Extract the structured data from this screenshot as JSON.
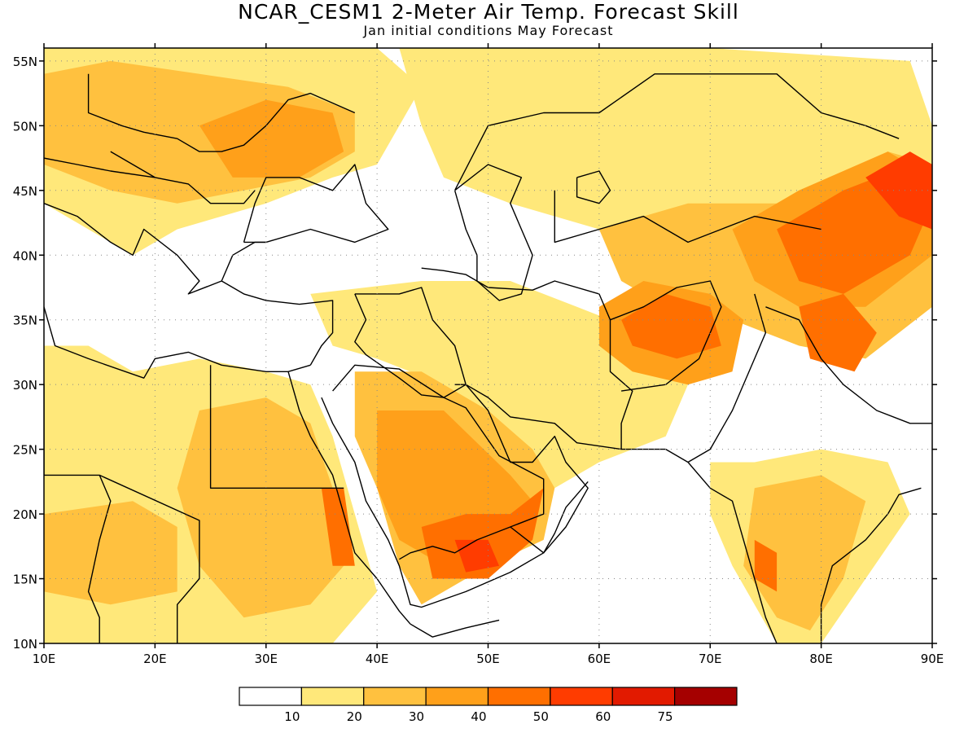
{
  "title": "NCAR_CESM1 2-Meter Air Temp. Forecast Skill",
  "subtitle": "Jan initial conditions  May Forecast",
  "map": {
    "lon_range": [
      10,
      90
    ],
    "lat_range": [
      10,
      56
    ],
    "lat_ticks": [
      {
        "value": 55,
        "label": "55N"
      },
      {
        "value": 50,
        "label": "50N"
      },
      {
        "value": 45,
        "label": "45N"
      },
      {
        "value": 40,
        "label": "40N"
      },
      {
        "value": 35,
        "label": "35N"
      },
      {
        "value": 30,
        "label": "30N"
      },
      {
        "value": 25,
        "label": "25N"
      },
      {
        "value": 20,
        "label": "20N"
      },
      {
        "value": 15,
        "label": "15N"
      },
      {
        "value": 10,
        "label": "10N"
      }
    ],
    "lon_ticks": [
      {
        "value": 10,
        "label": "10E"
      },
      {
        "value": 20,
        "label": "20E"
      },
      {
        "value": 30,
        "label": "30E"
      },
      {
        "value": 40,
        "label": "40E"
      },
      {
        "value": 50,
        "label": "50E"
      },
      {
        "value": 60,
        "label": "60E"
      },
      {
        "value": 70,
        "label": "70E"
      },
      {
        "value": 80,
        "label": "80E"
      },
      {
        "value": 90,
        "label": "90E"
      }
    ],
    "skill_colors": [
      "#ffffff",
      "#ffe87a",
      "#ffc13f",
      "#ffa01a",
      "#ff6f00",
      "#ff3c00",
      "#e21a00",
      "#a50000"
    ]
  },
  "legend": {
    "colors": [
      "#ffffff",
      "#ffe87a",
      "#ffc13f",
      "#ffa01a",
      "#ff6f00",
      "#ff3c00",
      "#e21a00",
      "#a50000"
    ],
    "labels": [
      "10",
      "20",
      "30",
      "40",
      "50",
      "60",
      "75"
    ]
  }
}
